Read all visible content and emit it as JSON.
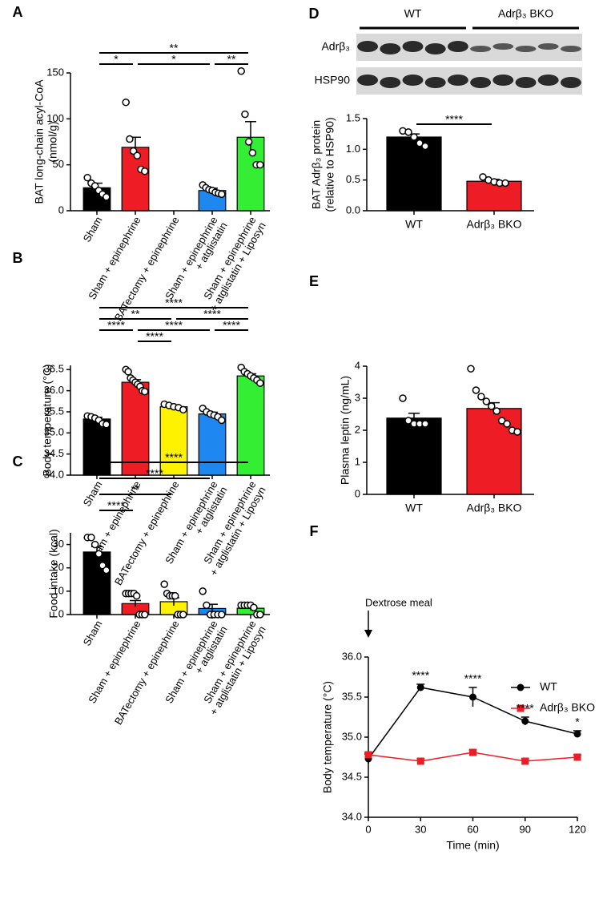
{
  "chart_data": [
    {
      "type": "bar",
      "panel_label": "A",
      "ylabel": [
        "BAT long-chain acyl-CoA",
        "(nmol/g)"
      ],
      "categories": [
        [
          "Sham"
        ],
        [
          "Sham + epinephrine"
        ],
        [
          "BATectomy + epinephrine"
        ],
        [
          "Sham + epinephrine",
          "+ atglistatin"
        ],
        [
          "Sham + epinephrine",
          "+ atglistatin + Liposyn"
        ]
      ],
      "values": [
        25,
        69,
        null,
        22,
        80
      ],
      "errors": [
        5,
        11,
        null,
        2.5,
        17
      ],
      "points": [
        [
          36,
          30,
          27,
          22,
          18,
          15
        ],
        [
          118,
          78,
          65,
          60,
          45,
          43
        ],
        null,
        [
          28,
          25,
          23,
          22,
          20,
          19,
          18
        ],
        [
          152,
          105,
          75,
          63,
          50,
          50
        ]
      ],
      "colors": [
        "#000000",
        "#ee1c25",
        null,
        "#1e88f0",
        "#33ee33"
      ],
      "ylim": [
        0,
        150
      ],
      "yticks": [
        0,
        50,
        100,
        150
      ],
      "significance": [
        [
          {
            "from": 0,
            "to": 4,
            "label": "**"
          }
        ],
        [
          {
            "from": 0,
            "to": 1,
            "label": "*"
          },
          {
            "from": 1,
            "to": 3,
            "label": "*"
          },
          {
            "from": 3,
            "to": 4,
            "label": "**"
          }
        ]
      ]
    },
    {
      "type": "bar",
      "panel_label": "B",
      "ylabel": [
        "Body temperature (°C)"
      ],
      "categories": [
        [
          "Sham"
        ],
        [
          "Sham + epinephrine"
        ],
        [
          "BATectomy + epinephrine"
        ],
        [
          "Sham + epinephrine",
          "+ atglistatin"
        ],
        [
          "Sham + epinephrine",
          "+ atglistatin + Liposyn"
        ]
      ],
      "values": [
        35.33,
        36.2,
        35.62,
        35.45,
        36.35
      ],
      "errors": [
        0.04,
        0.06,
        0.03,
        0.04,
        0.05
      ],
      "points": [
        [
          35.4,
          35.38,
          35.35,
          35.3,
          35.22,
          35.2
        ],
        [
          36.5,
          36.45,
          36.3,
          36.25,
          36.2,
          36.15,
          36.1,
          36.0,
          35.98
        ],
        [
          35.68,
          35.65,
          35.62,
          35.6,
          35.55
        ],
        [
          35.58,
          35.5,
          35.45,
          35.42,
          35.38,
          35.3
        ],
        [
          36.55,
          36.45,
          36.4,
          36.35,
          36.3,
          36.25,
          36.18
        ]
      ],
      "colors": [
        "#000000",
        "#ee1c25",
        "#fff200",
        "#1e88f0",
        "#33ee33"
      ],
      "ylim": [
        34,
        36.6
      ],
      "yticks": [
        {
          "value": 34,
          "label": "34.0"
        },
        34.5,
        {
          "value": 35,
          "label": "35.0"
        },
        35.5,
        {
          "value": 36,
          "label": "36.0"
        },
        36.5
      ],
      "significance": [
        [
          {
            "from": 0,
            "to": 4,
            "label": "****"
          }
        ],
        [
          {
            "from": 0,
            "to": 2,
            "label": "**"
          },
          {
            "from": 2,
            "to": 4,
            "label": "****"
          }
        ],
        [
          {
            "from": 0,
            "to": 1,
            "label": "****"
          },
          {
            "from": 1,
            "to": 3,
            "label": "****"
          },
          {
            "from": 3,
            "to": 4,
            "label": "****"
          }
        ],
        [
          {
            "from": 1,
            "to": 2,
            "label": "****"
          }
        ]
      ]
    },
    {
      "type": "bar",
      "panel_label": "C",
      "ylabel": [
        "Food intake (kcal)"
      ],
      "categories": [
        [
          "Sham"
        ],
        [
          "Sham + epinephrine"
        ],
        [
          "BATectomy + epinephrine"
        ],
        [
          "Sham + epinephrine",
          "+ atglistatin"
        ],
        [
          "Sham + epinephrine",
          "+ atglistatin + Liposyn"
        ]
      ],
      "values": [
        26.8,
        4.7,
        5.5,
        2.6,
        2.7
      ],
      "errors": [
        2.3,
        1.3,
        1.7,
        1.8,
        0.9
      ],
      "points": [
        [
          33,
          33,
          30,
          26,
          21,
          19
        ],
        [
          9,
          9,
          9,
          9,
          8,
          0,
          0,
          0
        ],
        [
          13,
          9,
          8,
          8,
          8,
          0,
          0,
          0
        ],
        [
          10,
          4,
          0,
          0,
          0,
          0
        ],
        [
          4,
          4,
          4,
          4,
          3,
          0,
          0
        ]
      ],
      "colors": [
        "#000000",
        "#ee1c25",
        "#fff200",
        "#1e88f0",
        "#33ee33"
      ],
      "ylim": [
        0,
        35
      ],
      "yticks": [
        0,
        10,
        20,
        30
      ],
      "significance": [
        [
          {
            "from": 0,
            "to": 4,
            "label": "****"
          }
        ],
        [
          {
            "from": 0,
            "to": 3,
            "label": "****"
          }
        ],
        [
          {
            "from": 0,
            "to": 2,
            "label": "**"
          }
        ],
        [
          {
            "from": 0,
            "to": 1,
            "label": "****"
          }
        ]
      ]
    },
    {
      "type": "bar",
      "panel_label": "D",
      "blot": {
        "groups": [
          "WT",
          "Adrβ₃ BKO"
        ],
        "rows": [
          "Adrβ₃",
          "HSP90"
        ]
      },
      "ylabel": [
        "BAT Adrβ₃ protein",
        "(relative to HSP90)"
      ],
      "categories": [
        [
          "WT"
        ],
        [
          "Adrβ₃ BKO"
        ]
      ],
      "values": [
        1.2,
        0.48
      ],
      "errors": [
        0.05,
        0.03
      ],
      "points": [
        [
          1.3,
          1.28,
          1.2,
          1.1,
          1.05
        ],
        [
          0.55,
          0.5,
          0.47,
          0.45,
          0.45
        ]
      ],
      "colors": [
        "#000000",
        "#ee1c25"
      ],
      "ylim": [
        0,
        1.5
      ],
      "yticks": [
        {
          "value": 0,
          "label": "0.0"
        },
        0.5,
        {
          "value": 1,
          "label": "1.0"
        },
        1.5
      ],
      "significance": [
        [
          {
            "from": 0,
            "to": 1,
            "label": "****"
          }
        ]
      ]
    },
    {
      "type": "bar",
      "panel_label": "E",
      "ylabel": [
        "Plasma leptin (ng/mL)"
      ],
      "categories": [
        [
          "WT"
        ],
        [
          "Adrβ₃ BKO"
        ]
      ],
      "values": [
        2.38,
        2.68
      ],
      "errors": [
        0.15,
        0.18
      ],
      "points": [
        [
          3.0,
          2.3,
          2.2,
          2.2,
          2.2
        ],
        [
          3.92,
          3.25,
          3.05,
          2.9,
          2.75,
          2.6,
          2.3,
          2.2,
          2.0,
          1.95
        ]
      ],
      "colors": [
        "#000000",
        "#ee1c25"
      ],
      "ylim": [
        0,
        4
      ],
      "yticks": [
        0,
        1,
        2,
        3,
        4
      ]
    },
    {
      "type": "line",
      "panel_label": "F",
      "ylabel": [
        "Body temperature (°C)"
      ],
      "xlabel": "Time (min)",
      "annotation": "Dextrose meal",
      "x": [
        0,
        30,
        60,
        90,
        120
      ],
      "xlim": [
        0,
        120
      ],
      "xticks": [
        0,
        30,
        60,
        90,
        120
      ],
      "ylim": [
        34,
        36
      ],
      "yticks": [
        {
          "value": 34,
          "label": "34.0"
        },
        34.5,
        {
          "value": 35,
          "label": "35.0"
        },
        35.5,
        {
          "value": 36,
          "label": "36.0"
        }
      ],
      "series": [
        {
          "name": "WT",
          "color": "#000000",
          "marker": "circle",
          "values": [
            34.73,
            35.62,
            35.5,
            35.2,
            35.04
          ],
          "errors": [
            0.06,
            0.04,
            0.12,
            0.05,
            0.04
          ]
        },
        {
          "name": "Adrβ₃ BKO",
          "color": "#ee1c25",
          "marker": "square",
          "values": [
            34.78,
            34.7,
            34.81,
            34.7,
            34.75
          ],
          "errors": [
            0.03,
            0.03,
            0.03,
            0.03,
            0.03
          ]
        }
      ],
      "significance": [
        null,
        "****",
        "****",
        "****",
        "*"
      ]
    }
  ]
}
